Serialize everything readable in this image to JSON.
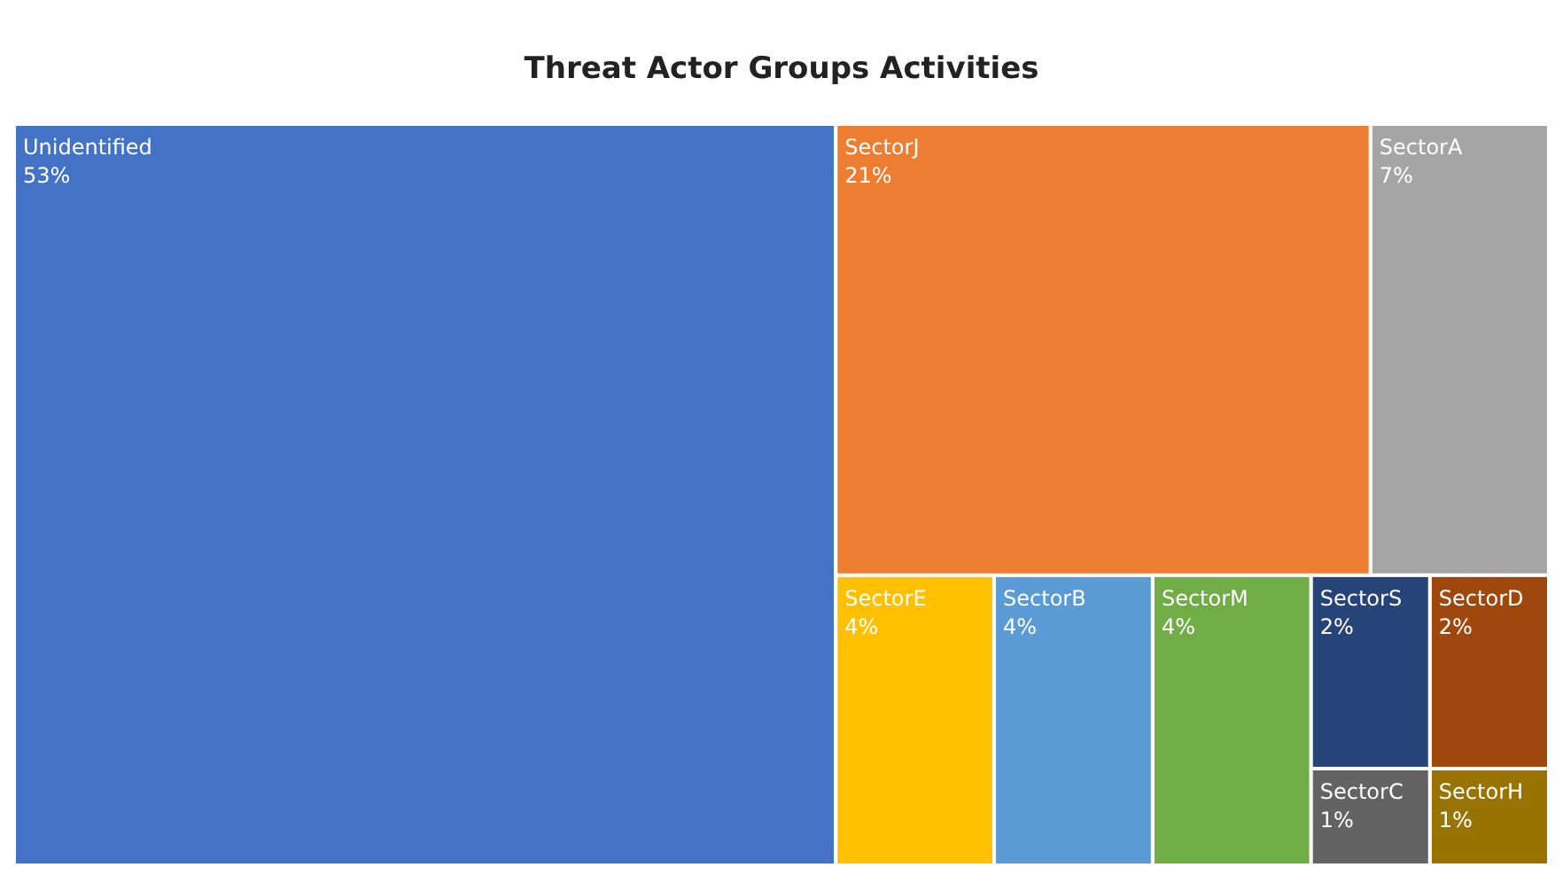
{
  "chart_data": {
    "type": "other",
    "title": "Threat Actor Groups Activities",
    "categories": [
      "Unidentified",
      "SectorJ",
      "SectorA",
      "SectorE",
      "SectorB",
      "SectorM",
      "SectorS",
      "SectorD",
      "SectorC",
      "SectorH"
    ],
    "values": [
      53,
      21,
      7,
      4,
      4,
      4,
      2,
      2,
      1,
      1
    ],
    "value_labels": [
      "53%",
      "21%",
      "7%",
      "4%",
      "4%",
      "4%",
      "2%",
      "2%",
      "1%",
      "1%"
    ],
    "colors": [
      "#4472c4",
      "#ed7d31",
      "#a5a5a5",
      "#ffc000",
      "#5b9bd5",
      "#70ad47",
      "#264478",
      "#9e480e",
      "#636363",
      "#997300"
    ]
  }
}
